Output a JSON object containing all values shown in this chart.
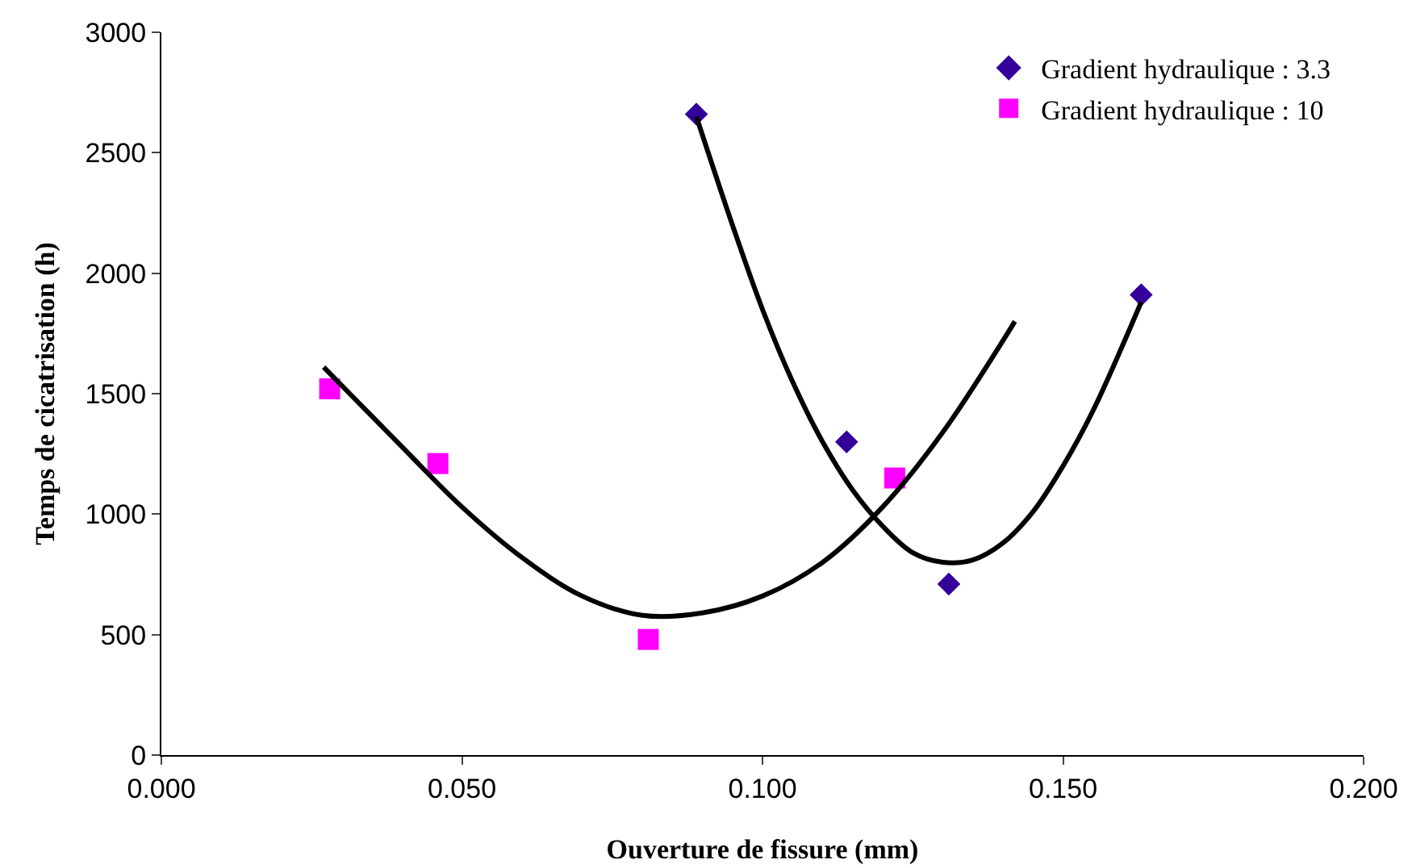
{
  "chart_data": {
    "type": "scatter",
    "xlabel": "Ouverture de fissure (mm)",
    "ylabel": "Temps de cicatrisation (h)",
    "xlim": [
      0,
      0.2
    ],
    "xticks": [
      {
        "value": 0,
        "label": "0.000"
      },
      {
        "value": 0.05,
        "label": "0.050"
      },
      {
        "value": 0.1,
        "label": "0.100"
      },
      {
        "value": 0.15,
        "label": "0.150"
      },
      {
        "value": 0.2,
        "label": "0.200"
      }
    ],
    "ylim": [
      0,
      3000
    ],
    "yticks": [
      0,
      500,
      1000,
      1500,
      2000,
      2500,
      3000
    ],
    "grid": false,
    "legend": "top right",
    "series": [
      {
        "name": "Gradient hydraulique : 3.3",
        "color": "#330099",
        "marker": "diamond",
        "x": [
          0.089,
          0.114,
          0.131,
          0.163
        ],
        "values": [
          2660,
          1300,
          710,
          1910
        ]
      },
      {
        "name": "Gradient hydraulique : 10",
        "color": "#ff00ff",
        "marker": "square",
        "x": [
          0.028,
          0.046,
          0.081,
          0.122
        ],
        "values": [
          1520,
          1210,
          480,
          1150
        ]
      },
      {
        "type": "line",
        "color": "#000000",
        "x": [
          0.089,
          0.095,
          0.1,
          0.105,
          0.11,
          0.115,
          0.12,
          0.125,
          0.13,
          0.135,
          0.14,
          0.145,
          0.15,
          0.155,
          0.163
        ],
        "values": [
          2650,
          2200,
          1850,
          1550,
          1300,
          1100,
          950,
          840,
          800,
          810,
          880,
          1010,
          1200,
          1430,
          1880
        ]
      },
      {
        "type": "line",
        "color": "#000000",
        "x": [
          0.027,
          0.04,
          0.05,
          0.06,
          0.07,
          0.08,
          0.09,
          0.1,
          0.11,
          0.12,
          0.13,
          0.142
        ],
        "values": [
          1610,
          1280,
          1030,
          820,
          660,
          580,
          590,
          660,
          800,
          1030,
          1340,
          1800
        ]
      }
    ]
  }
}
